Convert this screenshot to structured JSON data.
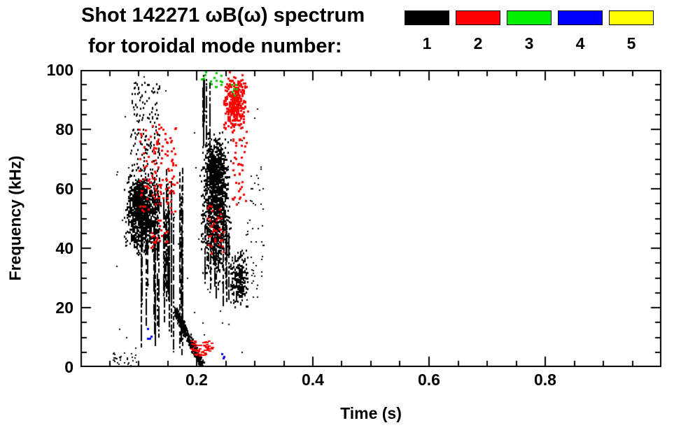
{
  "title": {
    "line1": "Shot 142271 ωB(ω) spectrum",
    "line2": "for toroidal mode number:"
  },
  "legend": {
    "entries": [
      {
        "label": "1",
        "color": "#000000"
      },
      {
        "label": "2",
        "color": "#ff0000"
      },
      {
        "label": "3",
        "color": "#00ee00"
      },
      {
        "label": "4",
        "color": "#0000ff"
      },
      {
        "label": "5",
        "color": "#ffff00"
      }
    ]
  },
  "chart_data": {
    "type": "scatter",
    "title": "Shot 142271 ωB(ω) spectrum for toroidal mode number: 1 2 3 4 5",
    "xlabel": "Time (s)",
    "ylabel": "Frequency (kHz)",
    "xlim": [
      0,
      1.0
    ],
    "ylim": [
      0,
      100
    ],
    "x_ticks": [
      0.2,
      0.4,
      0.6,
      0.8
    ],
    "x_tick_labels": [
      "0.2",
      "0.4",
      "0.6",
      "0.8"
    ],
    "x_minor_step": 0.05,
    "y_ticks": [
      0,
      20,
      40,
      60,
      80,
      100
    ],
    "y_tick_labels": [
      "0",
      "20",
      "40",
      "60",
      "80",
      "100"
    ],
    "y_minor_step": 5,
    "grid": false,
    "legend_position": "top-right",
    "frame_color": "#000000",
    "background": "#ffffff",
    "seed": 1424271,
    "series": [
      {
        "name": "n=1",
        "color": "#000000",
        "clusters": [
          {
            "type": "blob",
            "t": [
              0.075,
              0.14
            ],
            "f": [
              38,
              66
            ],
            "n": 900,
            "w": 2,
            "h": 3
          },
          {
            "type": "blob",
            "t": [
              0.085,
              0.115
            ],
            "f": [
              48,
              64
            ],
            "n": 400,
            "w": 2,
            "h": 3
          },
          {
            "type": "sparse",
            "t": [
              0.085,
              0.135
            ],
            "f": [
              66,
              96
            ],
            "n": 160,
            "w": 2,
            "h": 3
          },
          {
            "type": "streaks",
            "t": [
              0.1,
              0.175
            ],
            "f_top": [
              50,
              68
            ],
            "f_bottom": [
              4,
              28
            ],
            "n_streaks": 26
          },
          {
            "type": "blob",
            "t": [
              0.205,
              0.26
            ],
            "f": [
              28,
              80
            ],
            "n": 1000,
            "w": 2,
            "h": 3
          },
          {
            "type": "blob",
            "t": [
              0.215,
              0.25
            ],
            "f": [
              52,
              80
            ],
            "n": 450,
            "w": 2,
            "h": 3
          },
          {
            "type": "blob",
            "t": [
              0.255,
              0.29
            ],
            "f": [
              20,
              40
            ],
            "n": 260,
            "w": 2,
            "h": 3
          },
          {
            "type": "streaks",
            "t": [
              0.21,
              0.255
            ],
            "f_top": [
              40,
              50
            ],
            "f_bottom": [
              20,
              32
            ],
            "n_streaks": 10
          },
          {
            "type": "streaks",
            "t": [
              0.205,
              0.228
            ],
            "f_top": [
              92,
              100
            ],
            "f_bottom": [
              70,
              85
            ],
            "n_streaks": 8
          },
          {
            "type": "chirp",
            "t": [
              0.163,
              0.21
            ],
            "f": [
              19,
              0
            ],
            "n": 420,
            "w": 2,
            "h": 3
          },
          {
            "type": "sparse",
            "t": [
              0.055,
              0.095
            ],
            "f": [
              0.5,
              5
            ],
            "n": 30,
            "w": 2,
            "h": 2
          },
          {
            "type": "sparse",
            "t": [
              0.285,
              0.315
            ],
            "f": [
              22,
              68
            ],
            "n": 45,
            "w": 2,
            "h": 2
          },
          {
            "type": "sparse",
            "t": [
              0.06,
              0.315
            ],
            "f": [
              2,
              98
            ],
            "n": 70,
            "w": 2,
            "h": 2
          }
        ]
      },
      {
        "name": "n=2",
        "color": "#ff0000",
        "clusters": [
          {
            "type": "sparse",
            "t": [
              0.1,
              0.165
            ],
            "f": [
              52,
              82
            ],
            "n": 130,
            "w": 3,
            "h": 3
          },
          {
            "type": "sparse",
            "t": [
              0.12,
              0.15
            ],
            "f": [
              38,
              50
            ],
            "n": 20,
            "w": 3,
            "h": 3
          },
          {
            "type": "blob",
            "t": [
              0.243,
              0.287
            ],
            "f": [
              78,
              100
            ],
            "n": 330,
            "w": 3,
            "h": 3
          },
          {
            "type": "sparse",
            "t": [
              0.188,
              0.225
            ],
            "f": [
              4,
              9
            ],
            "n": 55,
            "w": 4,
            "h": 2
          },
          {
            "type": "sparse",
            "t": [
              0.215,
              0.245
            ],
            "f": [
              38,
              55
            ],
            "n": 35,
            "w": 3,
            "h": 3
          },
          {
            "type": "sparse",
            "t": [
              0.26,
              0.285
            ],
            "f": [
              55,
              78
            ],
            "n": 40,
            "w": 3,
            "h": 3
          }
        ]
      },
      {
        "name": "n=3",
        "color": "#00cc00",
        "clusters": [
          {
            "type": "sparse",
            "t": [
              0.222,
              0.243
            ],
            "f": [
              94,
              100
            ],
            "n": 12,
            "w": 3,
            "h": 3
          },
          {
            "type": "sparse",
            "t": [
              0.258,
              0.27
            ],
            "f": [
              90,
              97
            ],
            "n": 6,
            "w": 3,
            "h": 3
          },
          {
            "type": "sparse",
            "t": [
              0.205,
              0.215
            ],
            "f": [
              97,
              100
            ],
            "n": 4,
            "w": 3,
            "h": 3
          }
        ]
      },
      {
        "name": "n=4",
        "color": "#0000ff",
        "clusters": [
          {
            "type": "sparse",
            "t": [
              0.112,
              0.126
            ],
            "f": [
              9,
              14
            ],
            "n": 4,
            "w": 3,
            "h": 3
          },
          {
            "type": "sparse",
            "t": [
              0.24,
              0.25
            ],
            "f": [
              2,
              6
            ],
            "n": 3,
            "w": 3,
            "h": 3
          }
        ]
      },
      {
        "name": "n=5",
        "color": "#ffff00",
        "clusters": []
      }
    ]
  }
}
